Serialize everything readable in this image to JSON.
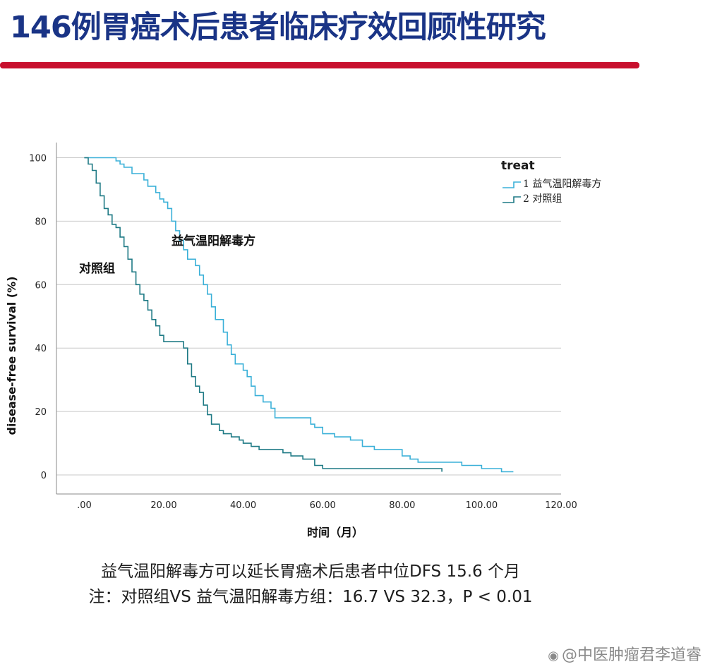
{
  "slide": {
    "title": "146例胃癌术后患者临床疗效回顾性研究",
    "caption_line1": "益气温阳解毒方可以延长胃癌术后患者中位DFS 15.6 个月",
    "caption_line2": "注：对照组VS 益气温阳解毒方组：16.7 VS 32.3，P < 0.01",
    "watermark": "@中医肿瘤君李道睿",
    "accent_color": "#c8102e",
    "title_color": "#1a3486"
  },
  "chart_data": {
    "type": "line",
    "step": true,
    "xlabel": "时间（月）",
    "ylabel": "disease-free survival (%)",
    "xlim": [
      -7,
      120
    ],
    "ylim": [
      -6,
      103
    ],
    "x_ticks": [
      ".00",
      "20.00",
      "40.00",
      "60.00",
      "80.00",
      "100.00",
      "120.00"
    ],
    "x_tick_values": [
      0,
      20,
      40,
      60,
      80,
      100,
      120
    ],
    "y_ticks": [
      "0",
      "20",
      "40",
      "60",
      "80",
      "100"
    ],
    "y_tick_values": [
      0,
      20,
      40,
      60,
      80,
      100
    ],
    "grid": "horizontal",
    "legend_title": "treat",
    "legend_position": "top-right",
    "series": [
      {
        "name": "益气温阳解毒方",
        "legend_label": "1 益气温阳解毒方",
        "annotation": "益气温阳解毒方",
        "color": "#3ab0d8",
        "points": [
          [
            0,
            100
          ],
          [
            7,
            100
          ],
          [
            8,
            99
          ],
          [
            9,
            98
          ],
          [
            10,
            97
          ],
          [
            12,
            95
          ],
          [
            15,
            93
          ],
          [
            16,
            91
          ],
          [
            18,
            89
          ],
          [
            19,
            87
          ],
          [
            20,
            86
          ],
          [
            21,
            84
          ],
          [
            22,
            80
          ],
          [
            23,
            77
          ],
          [
            24,
            74
          ],
          [
            25,
            71
          ],
          [
            26,
            68
          ],
          [
            28,
            66
          ],
          [
            29,
            63
          ],
          [
            30,
            60
          ],
          [
            31,
            57
          ],
          [
            32,
            53
          ],
          [
            33,
            49
          ],
          [
            35,
            45
          ],
          [
            36,
            41
          ],
          [
            37,
            38
          ],
          [
            38,
            35
          ],
          [
            40,
            33
          ],
          [
            41,
            31
          ],
          [
            42,
            28
          ],
          [
            43,
            25
          ],
          [
            45,
            23
          ],
          [
            47,
            21
          ],
          [
            48,
            18
          ],
          [
            51,
            18
          ],
          [
            55,
            18
          ],
          [
            57,
            16
          ],
          [
            58,
            15
          ],
          [
            60,
            13
          ],
          [
            63,
            12
          ],
          [
            67,
            11
          ],
          [
            70,
            9
          ],
          [
            73,
            8
          ],
          [
            78,
            8
          ],
          [
            80,
            6
          ],
          [
            82,
            5
          ],
          [
            84,
            4
          ],
          [
            90,
            4
          ],
          [
            95,
            3
          ],
          [
            100,
            2
          ],
          [
            105,
            1
          ],
          [
            108,
            1
          ]
        ]
      },
      {
        "name": "对照组",
        "legend_label": "2 对照组",
        "annotation": "对照组",
        "color": "#1f7a85",
        "points": [
          [
            0,
            100
          ],
          [
            1,
            98
          ],
          [
            2,
            96
          ],
          [
            3,
            92
          ],
          [
            4,
            88
          ],
          [
            5,
            84
          ],
          [
            6,
            82
          ],
          [
            7,
            79
          ],
          [
            8,
            78
          ],
          [
            9,
            75
          ],
          [
            10,
            72
          ],
          [
            11,
            68
          ],
          [
            12,
            64
          ],
          [
            13,
            60
          ],
          [
            14,
            57
          ],
          [
            15,
            55
          ],
          [
            16,
            52
          ],
          [
            17,
            49
          ],
          [
            18,
            47
          ],
          [
            19,
            44
          ],
          [
            20,
            42
          ],
          [
            21,
            42
          ],
          [
            24,
            42
          ],
          [
            25,
            40
          ],
          [
            26,
            35
          ],
          [
            27,
            31
          ],
          [
            28,
            28
          ],
          [
            29,
            26
          ],
          [
            30,
            22
          ],
          [
            31,
            19
          ],
          [
            32,
            16
          ],
          [
            34,
            14
          ],
          [
            35,
            13
          ],
          [
            37,
            12
          ],
          [
            39,
            11
          ],
          [
            40,
            10
          ],
          [
            42,
            9
          ],
          [
            44,
            8
          ],
          [
            47,
            8
          ],
          [
            50,
            7
          ],
          [
            52,
            6
          ],
          [
            55,
            5
          ],
          [
            58,
            3
          ],
          [
            60,
            2
          ],
          [
            65,
            2
          ],
          [
            70,
            2
          ],
          [
            75,
            2
          ],
          [
            80,
            2
          ],
          [
            85,
            2
          ],
          [
            90,
            1
          ]
        ]
      }
    ]
  }
}
